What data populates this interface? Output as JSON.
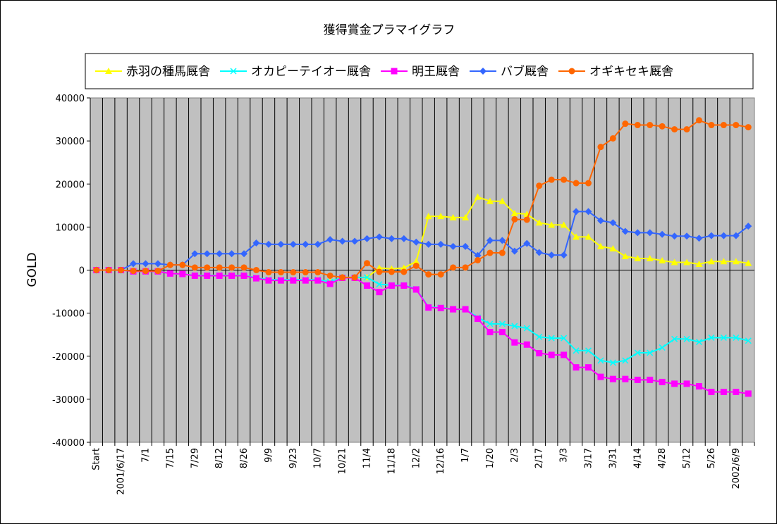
{
  "chart_data": {
    "type": "line",
    "title": "獲得賞金プラマイグラフ",
    "ylabel": "GOLD",
    "xlabel": "",
    "ylim": [
      -40000,
      40000
    ],
    "yticks": [
      40000,
      30000,
      20000,
      10000,
      0,
      -10000,
      -20000,
      -30000,
      -40000
    ],
    "ytick_labels": [
      "40000",
      "30000",
      "20000",
      "10000",
      "0",
      "-10000",
      "-20000",
      "-30000",
      "-40000"
    ],
    "grid": "vertical",
    "plot_background": "#c0c0c0",
    "legend_position": "top",
    "x_tick_labels": [
      {
        "index": 0,
        "label": "Start"
      },
      {
        "index": 2,
        "label": "2001/6/17"
      },
      {
        "index": 4,
        "label": "7/1"
      },
      {
        "index": 6,
        "label": "7/15"
      },
      {
        "index": 8,
        "label": "7/29"
      },
      {
        "index": 10,
        "label": "8/12"
      },
      {
        "index": 12,
        "label": "8/26"
      },
      {
        "index": 14,
        "label": "9/9"
      },
      {
        "index": 16,
        "label": "9/23"
      },
      {
        "index": 18,
        "label": "10/7"
      },
      {
        "index": 20,
        "label": "10/21"
      },
      {
        "index": 22,
        "label": "11/4"
      },
      {
        "index": 24,
        "label": "11/18"
      },
      {
        "index": 26,
        "label": "12/2"
      },
      {
        "index": 28,
        "label": "12/16"
      },
      {
        "index": 30,
        "label": "1/7"
      },
      {
        "index": 32,
        "label": "1/20"
      },
      {
        "index": 34,
        "label": "2/3"
      },
      {
        "index": 36,
        "label": "2/17"
      },
      {
        "index": 38,
        "label": "3/3"
      },
      {
        "index": 40,
        "label": "3/17"
      },
      {
        "index": 42,
        "label": "3/31"
      },
      {
        "index": 44,
        "label": "4/14"
      },
      {
        "index": 46,
        "label": "4/28"
      },
      {
        "index": 48,
        "label": "5/12"
      },
      {
        "index": 50,
        "label": "5/26"
      },
      {
        "index": 52,
        "label": "2002/6/9"
      }
    ],
    "n_points": 54,
    "series": [
      {
        "name": "赤羽の種馬厩舎",
        "color": "#ffff00",
        "marker": "triangle",
        "values": [
          0,
          0,
          0,
          -300,
          -300,
          -300,
          -800,
          -900,
          -1200,
          -1200,
          -1200,
          -1200,
          -1200,
          -1800,
          -2200,
          -2200,
          -2200,
          -2200,
          -2200,
          -2700,
          -1700,
          -1700,
          -1700,
          500,
          300,
          500,
          2000,
          12500,
          12500,
          12200,
          12200,
          17000,
          16000,
          16000,
          13200,
          13000,
          11000,
          10500,
          10500,
          7700,
          7700,
          5500,
          5000,
          3200,
          2700,
          2700,
          2200,
          1800,
          1800,
          1400,
          2000,
          2000,
          2000,
          1600
        ]
      },
      {
        "name": "オカピーテイオー厩舎",
        "color": "#00ffff",
        "marker": "x",
        "values": [
          0,
          0,
          0,
          -300,
          -300,
          -300,
          -800,
          -900,
          -1200,
          -1200,
          -1200,
          -1200,
          -1200,
          -1800,
          -2200,
          -2200,
          -2200,
          -2200,
          -2200,
          -2700,
          -1700,
          -1700,
          -1700,
          -3300,
          -3500,
          -3500,
          -4400,
          -8600,
          -8700,
          -9100,
          -9100,
          -11000,
          -12500,
          -12500,
          -13000,
          -13500,
          -15500,
          -15800,
          -15800,
          -18700,
          -18700,
          -21000,
          -21500,
          -21000,
          -19200,
          -19200,
          -18000,
          -16000,
          -16000,
          -16700,
          -15700,
          -15700,
          -15700,
          -16400
        ]
      },
      {
        "name": "明王厩舎",
        "color": "#ff00ff",
        "marker": "square",
        "values": [
          0,
          0,
          0,
          -300,
          -300,
          -300,
          -800,
          -900,
          -1300,
          -1300,
          -1300,
          -1300,
          -1300,
          -1900,
          -2400,
          -2400,
          -2400,
          -2400,
          -2400,
          -3200,
          -1800,
          -1800,
          -3600,
          -5100,
          -3600,
          -3600,
          -4500,
          -8700,
          -8800,
          -9100,
          -9100,
          -11300,
          -14400,
          -14400,
          -16800,
          -17300,
          -19300,
          -19700,
          -19700,
          -22600,
          -22600,
          -24800,
          -25300,
          -25300,
          -25500,
          -25500,
          -26000,
          -26400,
          -26400,
          -27000,
          -28300,
          -28300,
          -28300,
          -28700
        ]
      },
      {
        "name": "バブ厩舎",
        "color": "#3366ff",
        "marker": "diamond",
        "values": [
          0,
          0,
          0,
          1500,
          1500,
          1500,
          1200,
          1200,
          3800,
          3800,
          3800,
          3800,
          3800,
          6300,
          6000,
          6000,
          6000,
          6000,
          6000,
          7100,
          6700,
          6700,
          7300,
          7700,
          7300,
          7300,
          6500,
          6000,
          6000,
          5500,
          5500,
          3400,
          6900,
          6900,
          4400,
          6200,
          4100,
          3500,
          3500,
          13600,
          13600,
          11500,
          11000,
          9000,
          8700,
          8700,
          8300,
          7900,
          7900,
          7400,
          8000,
          8000,
          8000,
          10200
        ]
      },
      {
        "name": "オギキセキ厩舎",
        "color": "#ff6600",
        "marker": "circle",
        "values": [
          0,
          0,
          0,
          -200,
          -200,
          -200,
          1200,
          1200,
          600,
          600,
          600,
          600,
          600,
          0,
          -500,
          -500,
          -500,
          -500,
          -500,
          -1300,
          -1700,
          -1700,
          1600,
          -400,
          -400,
          -400,
          1000,
          -1000,
          -1000,
          600,
          600,
          2300,
          4000,
          4000,
          11800,
          11700,
          19600,
          21000,
          21000,
          20200,
          20200,
          28600,
          30600,
          34000,
          33700,
          33700,
          33400,
          32700,
          32700,
          34800,
          33700,
          33700,
          33700,
          33200
        ]
      }
    ]
  }
}
